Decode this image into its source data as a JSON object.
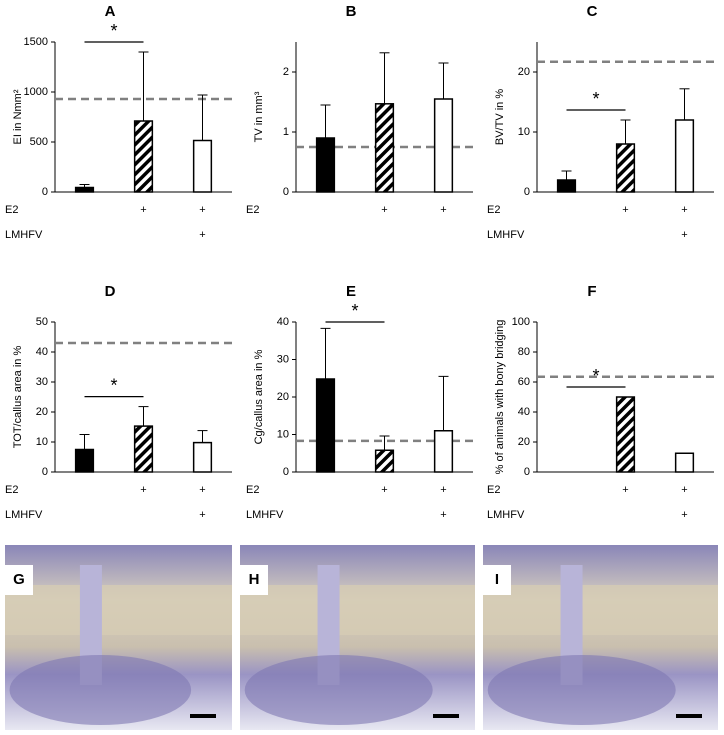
{
  "chart_data": [
    {
      "type": "bar",
      "panel": "A",
      "ylabel": "EI in Nmm²",
      "values": [
        45,
        710,
        515
      ],
      "errors": [
        30,
        690,
        455
      ],
      "bar_fills": [
        "#000000",
        "hatch",
        "#ffffff"
      ],
      "ylim": [
        0,
        1500
      ],
      "yticks": [
        0,
        500,
        1000,
        1500
      ],
      "reference_line": 930,
      "reference_color": "#808080",
      "significance": {
        "label": "*",
        "between": [
          0,
          1
        ]
      },
      "row_labels": [
        "E2",
        "LMHFV"
      ],
      "rows": [
        [
          null,
          "+",
          "+"
        ],
        [
          null,
          null,
          "+"
        ]
      ]
    },
    {
      "type": "bar",
      "panel": "B",
      "ylabel": "TV in mm³",
      "values": [
        0.9,
        1.47,
        1.55
      ],
      "errors": [
        0.55,
        0.85,
        0.6
      ],
      "bar_fills": [
        "#000000",
        "hatch",
        "#ffffff"
      ],
      "ylim": [
        0,
        2.5
      ],
      "yticks": [
        0,
        1,
        2
      ],
      "reference_line": 0.75,
      "reference_color": "#808080",
      "row_labels": [
        "E2"
      ],
      "rows": [
        [
          null,
          "+",
          "+"
        ]
      ]
    },
    {
      "type": "bar",
      "panel": "C",
      "ylabel": "BV/TV in %",
      "values": [
        2,
        8,
        12
      ],
      "errors": [
        1.5,
        4,
        5.2
      ],
      "bar_fills": [
        "#000000",
        "hatch",
        "#ffffff"
      ],
      "ylim": [
        0,
        25
      ],
      "yticks": [
        0,
        10,
        20
      ],
      "reference_line": 21.7,
      "reference_color": "#808080",
      "significance": {
        "label": "*",
        "between": [
          0,
          1
        ]
      },
      "row_labels": [
        "E2",
        "LMHFV"
      ],
      "rows": [
        [
          null,
          "+",
          "+"
        ],
        [
          null,
          null,
          "+"
        ]
      ]
    },
    {
      "type": "bar",
      "panel": "D",
      "ylabel": "TOT/callus area in %",
      "values": [
        7.5,
        15.3,
        9.8
      ],
      "errors": [
        5,
        6.5,
        4
      ],
      "bar_fills": [
        "#000000",
        "hatch",
        "#ffffff"
      ],
      "ylim": [
        0,
        50
      ],
      "yticks": [
        0,
        10,
        20,
        30,
        40,
        50
      ],
      "reference_line": 43,
      "reference_color": "#808080",
      "significance": {
        "label": "*",
        "between": [
          0,
          1
        ]
      },
      "row_labels": [
        "E2",
        "LMHFV"
      ],
      "rows": [
        [
          null,
          "+",
          "+"
        ],
        [
          null,
          null,
          "+"
        ]
      ]
    },
    {
      "type": "bar",
      "panel": "E",
      "ylabel": "Cg/callus area in %",
      "values": [
        24.8,
        5.8,
        11
      ],
      "errors": [
        13.5,
        3.8,
        14.5
      ],
      "bar_fills": [
        "#000000",
        "hatch",
        "#ffffff"
      ],
      "ylim": [
        0,
        40
      ],
      "yticks": [
        0,
        10,
        20,
        30,
        40
      ],
      "reference_line": 8.3,
      "reference_color": "#808080",
      "significance": {
        "label": "*",
        "between": [
          0,
          1
        ]
      },
      "row_labels": [
        "E2",
        "LMHFV"
      ],
      "rows": [
        [
          null,
          "+",
          "+"
        ],
        [
          null,
          null,
          "+"
        ]
      ]
    },
    {
      "type": "bar",
      "panel": "F",
      "ylabel": "% of animals with bony bridging",
      "values": [
        0,
        50,
        12.5
      ],
      "bar_fills": [
        "#000000",
        "hatch",
        "#ffffff"
      ],
      "ylim": [
        0,
        100
      ],
      "yticks": [
        0,
        20,
        40,
        60,
        80,
        100
      ],
      "reference_line": 63.5,
      "reference_color": "#808080",
      "significance": {
        "label": "*",
        "between": [
          0,
          1
        ]
      },
      "row_labels": [
        "E2",
        "LMHFV"
      ],
      "rows": [
        [
          null,
          "+",
          "+"
        ],
        [
          null,
          null,
          "+"
        ]
      ]
    }
  ],
  "images": [
    {
      "label": "G"
    },
    {
      "label": "H"
    },
    {
      "label": "I"
    }
  ]
}
